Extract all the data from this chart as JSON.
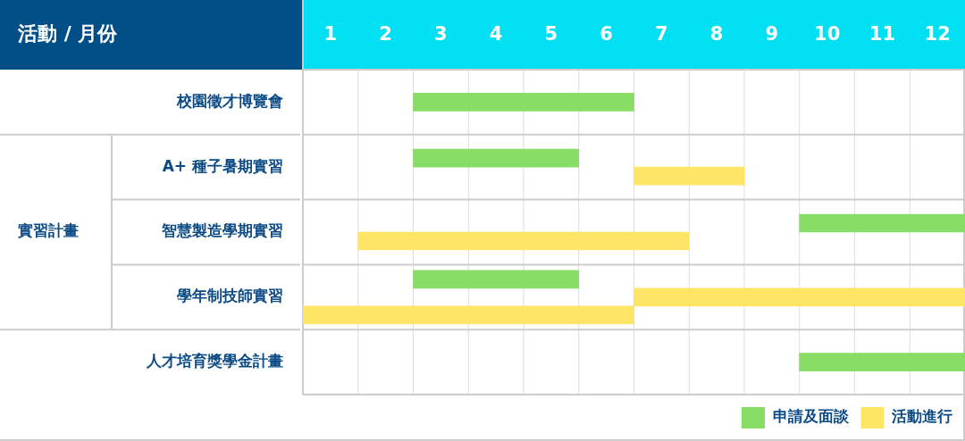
{
  "chart_data": {
    "type": "bar",
    "orientation": "horizontal",
    "ylabel": "活動 / 月份",
    "categories": [
      "校園徵才博覽會",
      "A+ 種子暑期實習",
      "智慧製造學期實習",
      "學年制技師實習",
      "人才培育獎學金計畫"
    ],
    "series": [
      {
        "name": "申請及面談",
        "color": "#88dd66",
        "values": [
          4,
          3,
          3,
          3,
          3
        ],
        "base": [
          2.5,
          2.5,
          9.5,
          2.5,
          9.5
        ]
      },
      {
        "name": "活動進行",
        "color": "#ffe566",
        "values": [
          null,
          2,
          6,
          6,
          null
        ],
        "base": [
          null,
          6.5,
          1.5,
          6.5,
          null
        ]
      },
      {
        "color": "#ffe566",
        "values": [
          null,
          null,
          null,
          6,
          null
        ],
        "base": [
          null,
          null,
          null,
          0.5,
          null
        ]
      }
    ],
    "xlim": [
      0.5,
      12.5
    ],
    "xticks": [
      1,
      2,
      3,
      4,
      5,
      6,
      7,
      8,
      9,
      10,
      11,
      12
    ],
    "annotations": [
      "實習計畫"
    ],
    "grid": true,
    "legend": "bottom right"
  }
}
